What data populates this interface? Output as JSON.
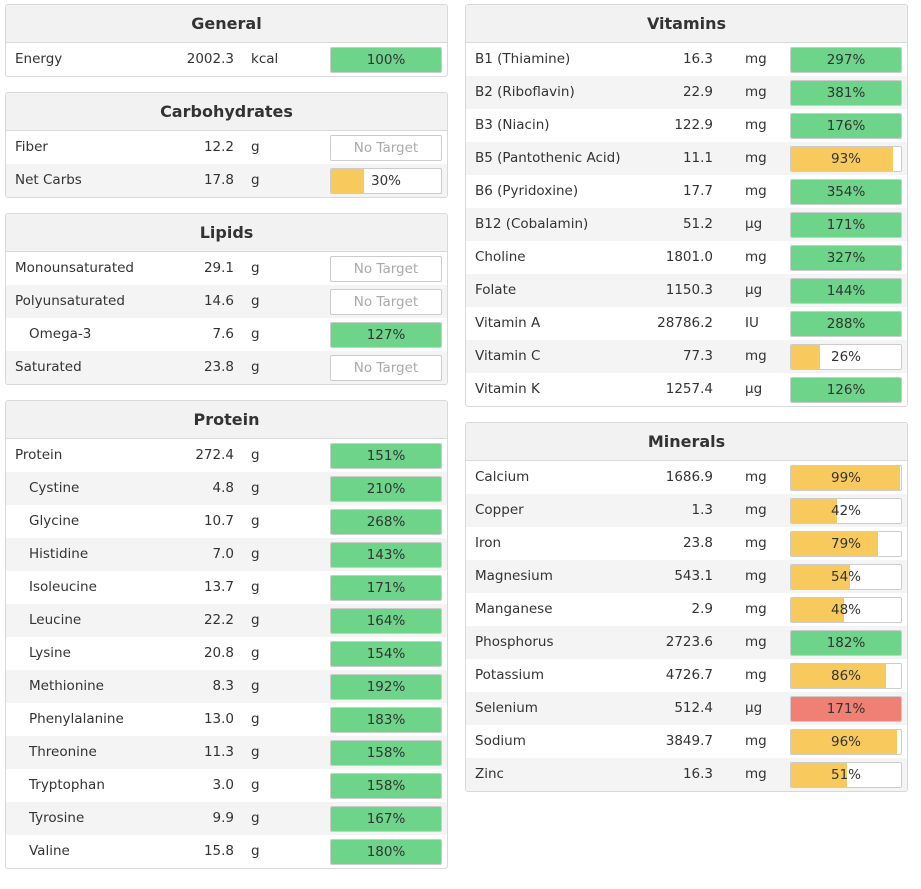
{
  "colors": {
    "green": "#6dd48a",
    "yellow": "#f8ca5e",
    "red": "#ef8073"
  },
  "left": [
    {
      "title": "General",
      "rows": [
        {
          "name": "Energy",
          "amount": "2002.3",
          "unit": "kcal",
          "label": "100%",
          "pct": 100,
          "color": "green"
        }
      ]
    },
    {
      "title": "Carbohydrates",
      "rows": [
        {
          "name": "Fiber",
          "amount": "12.2",
          "unit": "g",
          "label": "No Target",
          "pct": 0,
          "color": "none"
        },
        {
          "name": "Net Carbs",
          "amount": "17.8",
          "unit": "g",
          "label": "30%",
          "pct": 30,
          "color": "yellow"
        }
      ]
    },
    {
      "title": "Lipids",
      "rows": [
        {
          "name": "Monounsaturated",
          "amount": "29.1",
          "unit": "g",
          "label": "No Target",
          "pct": 0,
          "color": "none"
        },
        {
          "name": "Polyunsaturated",
          "amount": "14.6",
          "unit": "g",
          "label": "No Target",
          "pct": 0,
          "color": "none"
        },
        {
          "name": "Omega-3",
          "amount": "7.6",
          "unit": "g",
          "label": "127%",
          "pct": 127,
          "color": "green",
          "sub": true
        },
        {
          "name": "Saturated",
          "amount": "23.8",
          "unit": "g",
          "label": "No Target",
          "pct": 0,
          "color": "none"
        }
      ]
    },
    {
      "title": "Protein",
      "rows": [
        {
          "name": "Protein",
          "amount": "272.4",
          "unit": "g",
          "label": "151%",
          "pct": 151,
          "color": "green"
        },
        {
          "name": "Cystine",
          "amount": "4.8",
          "unit": "g",
          "label": "210%",
          "pct": 210,
          "color": "green",
          "sub": true
        },
        {
          "name": "Glycine",
          "amount": "10.7",
          "unit": "g",
          "label": "268%",
          "pct": 268,
          "color": "green",
          "sub": true
        },
        {
          "name": "Histidine",
          "amount": "7.0",
          "unit": "g",
          "label": "143%",
          "pct": 143,
          "color": "green",
          "sub": true
        },
        {
          "name": "Isoleucine",
          "amount": "13.7",
          "unit": "g",
          "label": "171%",
          "pct": 171,
          "color": "green",
          "sub": true
        },
        {
          "name": "Leucine",
          "amount": "22.2",
          "unit": "g",
          "label": "164%",
          "pct": 164,
          "color": "green",
          "sub": true
        },
        {
          "name": "Lysine",
          "amount": "20.8",
          "unit": "g",
          "label": "154%",
          "pct": 154,
          "color": "green",
          "sub": true
        },
        {
          "name": "Methionine",
          "amount": "8.3",
          "unit": "g",
          "label": "192%",
          "pct": 192,
          "color": "green",
          "sub": true
        },
        {
          "name": "Phenylalanine",
          "amount": "13.0",
          "unit": "g",
          "label": "183%",
          "pct": 183,
          "color": "green",
          "sub": true
        },
        {
          "name": "Threonine",
          "amount": "11.3",
          "unit": "g",
          "label": "158%",
          "pct": 158,
          "color": "green",
          "sub": true
        },
        {
          "name": "Tryptophan",
          "amount": "3.0",
          "unit": "g",
          "label": "158%",
          "pct": 158,
          "color": "green",
          "sub": true
        },
        {
          "name": "Tyrosine",
          "amount": "9.9",
          "unit": "g",
          "label": "167%",
          "pct": 167,
          "color": "green",
          "sub": true
        },
        {
          "name": "Valine",
          "amount": "15.8",
          "unit": "g",
          "label": "180%",
          "pct": 180,
          "color": "green",
          "sub": true
        }
      ]
    }
  ],
  "right": [
    {
      "title": "Vitamins",
      "rows": [
        {
          "name": "B1 (Thiamine)",
          "amount": "16.3",
          "unit": "mg",
          "label": "297%",
          "pct": 297,
          "color": "green"
        },
        {
          "name": "B2 (Riboflavin)",
          "amount": "22.9",
          "unit": "mg",
          "label": "381%",
          "pct": 381,
          "color": "green"
        },
        {
          "name": "B3 (Niacin)",
          "amount": "122.9",
          "unit": "mg",
          "label": "176%",
          "pct": 176,
          "color": "green"
        },
        {
          "name": "B5 (Pantothenic Acid)",
          "amount": "11.1",
          "unit": "mg",
          "label": "93%",
          "pct": 93,
          "color": "yellow"
        },
        {
          "name": "B6 (Pyridoxine)",
          "amount": "17.7",
          "unit": "mg",
          "label": "354%",
          "pct": 354,
          "color": "green"
        },
        {
          "name": "B12 (Cobalamin)",
          "amount": "51.2",
          "unit": "µg",
          "label": "171%",
          "pct": 171,
          "color": "green"
        },
        {
          "name": "Choline",
          "amount": "1801.0",
          "unit": "mg",
          "label": "327%",
          "pct": 327,
          "color": "green"
        },
        {
          "name": "Folate",
          "amount": "1150.3",
          "unit": "µg",
          "label": "144%",
          "pct": 144,
          "color": "green"
        },
        {
          "name": "Vitamin A",
          "amount": "28786.2",
          "unit": "IU",
          "label": "288%",
          "pct": 288,
          "color": "green"
        },
        {
          "name": "Vitamin C",
          "amount": "77.3",
          "unit": "mg",
          "label": "26%",
          "pct": 26,
          "color": "yellow"
        },
        {
          "name": "Vitamin K",
          "amount": "1257.4",
          "unit": "µg",
          "label": "126%",
          "pct": 126,
          "color": "green"
        }
      ]
    },
    {
      "title": "Minerals",
      "rows": [
        {
          "name": "Calcium",
          "amount": "1686.9",
          "unit": "mg",
          "label": "99%",
          "pct": 99,
          "color": "yellow"
        },
        {
          "name": "Copper",
          "amount": "1.3",
          "unit": "mg",
          "label": "42%",
          "pct": 42,
          "color": "yellow"
        },
        {
          "name": "Iron",
          "amount": "23.8",
          "unit": "mg",
          "label": "79%",
          "pct": 79,
          "color": "yellow"
        },
        {
          "name": "Magnesium",
          "amount": "543.1",
          "unit": "mg",
          "label": "54%",
          "pct": 54,
          "color": "yellow"
        },
        {
          "name": "Manganese",
          "amount": "2.9",
          "unit": "mg",
          "label": "48%",
          "pct": 48,
          "color": "yellow"
        },
        {
          "name": "Phosphorus",
          "amount": "2723.6",
          "unit": "mg",
          "label": "182%",
          "pct": 182,
          "color": "green"
        },
        {
          "name": "Potassium",
          "amount": "4726.7",
          "unit": "mg",
          "label": "86%",
          "pct": 86,
          "color": "yellow"
        },
        {
          "name": "Selenium",
          "amount": "512.4",
          "unit": "µg",
          "label": "171%",
          "pct": 171,
          "color": "red"
        },
        {
          "name": "Sodium",
          "amount": "3849.7",
          "unit": "mg",
          "label": "96%",
          "pct": 96,
          "color": "yellow"
        },
        {
          "name": "Zinc",
          "amount": "16.3",
          "unit": "mg",
          "label": "51%",
          "pct": 51,
          "color": "yellow"
        }
      ]
    }
  ]
}
